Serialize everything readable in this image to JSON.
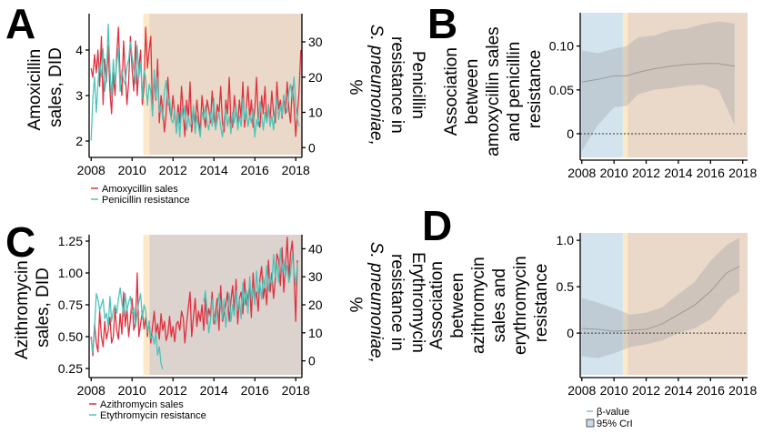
{
  "figure": {
    "panels": [
      {
        "letter": "A",
        "left_axis_lines": [
          "Amoxicillin",
          "sales, DID"
        ],
        "right_axis_lines": [
          "Penicillin",
          "resistance in",
          "S. pneumoniae,",
          "%"
        ]
      },
      {
        "letter": "B",
        "axis_lines": [
          "Association",
          "between",
          "amoxycillin sales",
          "and penicillin",
          "resistance"
        ]
      },
      {
        "letter": "C",
        "left_axis_lines": [
          "Azithromycin",
          "sales, DID"
        ],
        "right_axis_lines": [
          "Erythromycin",
          "resistance in",
          "S. pneumoniae,",
          "%"
        ]
      },
      {
        "letter": "D",
        "axis_lines": [
          "Association",
          "between",
          "azithromycin",
          "sales and",
          "erythromycin",
          "resistance"
        ]
      }
    ],
    "legend_a": [
      "Amoxycillin sales",
      "Penicillin resistance"
    ],
    "legend_c": [
      "Azithromycin sales",
      "Etythromycin resistance"
    ],
    "legend_d": [
      "β-value",
      "95% CrI"
    ]
  },
  "chart_data": [
    {
      "type": "line",
      "panel": "A",
      "x_ticks": [
        2008,
        2010,
        2012,
        2014,
        2016,
        2018
      ],
      "xlim": [
        2007.9,
        2018.3
      ],
      "ylim_left": [
        1.7,
        4.8
      ],
      "y_ticks_left": [
        2,
        3,
        4
      ],
      "ylim_right": [
        -2,
        38
      ],
      "y_ticks_right": [
        0,
        10,
        20,
        30
      ],
      "shaded_periods": [
        {
          "from": 2010.55,
          "to": 2010.85,
          "color": "#fde9c8"
        },
        {
          "from": 2010.85,
          "to": 2018.3,
          "color": "#ead9c9"
        }
      ],
      "series": [
        {
          "name": "Amoxycillin sales",
          "axis": "left",
          "color": "#e0303f",
          "x_start": 2008.0,
          "x_step": 0.0833,
          "values": [
            3.6,
            3.4,
            3.9,
            3.5,
            4.0,
            3.2,
            4.3,
            2.8,
            3.8,
            3.3,
            4.1,
            3.1,
            2.6,
            3.5,
            3.0,
            3.9,
            4.5,
            3.4,
            3.0,
            4.2,
            3.5,
            2.8,
            3.3,
            4.3,
            3.6,
            3.1,
            4.2,
            3.0,
            3.6,
            4.0,
            2.8,
            3.2,
            4.5,
            3.6,
            4.0,
            4.3,
            2.6,
            3.4,
            2.9,
            3.8,
            2.4,
            3.0,
            2.7,
            2.2,
            2.6,
            3.4,
            2.7,
            2.5,
            3.0,
            2.6,
            2.2,
            2.8,
            2.4,
            3.2,
            2.6,
            2.1,
            2.9,
            2.5,
            3.3,
            2.2,
            2.7,
            2.4,
            2.9,
            2.5,
            2.2,
            3.0,
            2.6,
            2.3,
            2.9,
            2.7,
            2.4,
            3.1,
            2.5,
            2.3,
            2.8,
            2.6,
            3.2,
            2.4,
            2.2,
            2.9,
            2.6,
            3.4,
            2.4,
            2.3,
            3.0,
            2.6,
            2.4,
            2.9,
            2.5,
            3.3,
            2.3,
            2.7,
            3.2,
            2.5,
            2.9,
            2.3,
            2.7,
            3.4,
            2.5,
            2.3,
            3.0,
            2.6,
            3.2,
            2.4,
            2.8,
            2.5,
            3.1,
            2.6,
            2.4,
            3.3,
            2.7,
            2.9,
            2.5,
            3.0,
            2.6,
            3.3,
            2.7,
            2.4,
            3.2,
            2.8,
            2.1,
            2.6,
            3.1,
            4.0
          ]
        },
        {
          "name": "Penicillin resistance",
          "axis": "right",
          "color": "#4fc3b8",
          "x_start": 2008.0,
          "x_step": 0.0833,
          "values": [
            2,
            14,
            20,
            10,
            18,
            24,
            20,
            28,
            16,
            20,
            35,
            22,
            14,
            25,
            18,
            24,
            28,
            16,
            22,
            19,
            18,
            23,
            25,
            30,
            26,
            22,
            18,
            29,
            20,
            24,
            14,
            22,
            20,
            12,
            18,
            16,
            9,
            22,
            14,
            20,
            10,
            12,
            8,
            16,
            19,
            12,
            14,
            8,
            7,
            11,
            4,
            10,
            3,
            11,
            8,
            12,
            5,
            9,
            6,
            7,
            12,
            4,
            9,
            6,
            3,
            10,
            8,
            12,
            7,
            5,
            10,
            6,
            14,
            5,
            8,
            10,
            6,
            3,
            8,
            11,
            6,
            9,
            4,
            10,
            7,
            12,
            5,
            9,
            6,
            14,
            8,
            11,
            6,
            9,
            7,
            11,
            3,
            8,
            6,
            13,
            9,
            5,
            10,
            7,
            12,
            6,
            9,
            5,
            11,
            14,
            8,
            12,
            9,
            15,
            12,
            10,
            16,
            18,
            14,
            20,
            12,
            8,
            6
          ]
        }
      ]
    },
    {
      "type": "area",
      "panel": "B",
      "x_ticks": [
        2008,
        2010,
        2012,
        2014,
        2016,
        2018
      ],
      "xlim": [
        2007.9,
        2018.3
      ],
      "y_ticks": [
        0,
        0.05,
        0.1
      ],
      "ylim": [
        -0.027,
        0.138
      ],
      "reference_line": 0,
      "shaded_periods": [
        {
          "from": 2007.9,
          "to": 2010.55,
          "color": "#d4e4ef"
        },
        {
          "from": 2010.55,
          "to": 2010.85,
          "color": "#fde9c8"
        },
        {
          "from": 2010.85,
          "to": 2018.3,
          "color": "#ead9c9"
        }
      ],
      "series": [
        {
          "name": "β-value",
          "color": "#9a9a9a",
          "x": [
            2008.0,
            2009.0,
            2010.0,
            2010.8,
            2011.5,
            2012.5,
            2013.5,
            2014.5,
            2015.5,
            2016.5,
            2017.5
          ],
          "values": [
            0.059,
            0.062,
            0.066,
            0.066,
            0.07,
            0.074,
            0.077,
            0.079,
            0.08,
            0.08,
            0.077
          ],
          "ci_lower": [
            -0.02,
            0.01,
            0.03,
            0.032,
            0.045,
            0.05,
            0.052,
            0.055,
            0.056,
            0.05,
            0.01
          ],
          "ci_upper": [
            0.095,
            0.092,
            0.097,
            0.1,
            0.11,
            0.112,
            0.118,
            0.12,
            0.125,
            0.128,
            0.126
          ]
        }
      ]
    },
    {
      "type": "line",
      "panel": "C",
      "x_ticks": [
        2008,
        2010,
        2012,
        2014,
        2016,
        2018
      ],
      "xlim": [
        2007.9,
        2018.3
      ],
      "ylim_left": [
        0.2,
        1.3
      ],
      "y_ticks_left": [
        0.25,
        0.5,
        0.75,
        1.0,
        1.25
      ],
      "ylim_right": [
        -5,
        45
      ],
      "y_ticks_right": [
        0,
        10,
        20,
        30,
        40
      ],
      "shaded_periods": [
        {
          "from": 2010.55,
          "to": 2010.85,
          "color": "#fde9c8"
        },
        {
          "from": 2010.85,
          "to": 2018.3,
          "color": "#dcd3cf"
        }
      ],
      "series": [
        {
          "name": "Azithromycin sales",
          "axis": "left",
          "color": "#e0303f",
          "x_start": 2008.0,
          "x_step": 0.0833,
          "values": [
            0.5,
            0.35,
            0.6,
            0.45,
            0.38,
            0.7,
            0.5,
            0.42,
            0.62,
            0.48,
            0.55,
            0.65,
            0.45,
            0.5,
            0.72,
            0.55,
            0.48,
            0.68,
            0.52,
            0.85,
            0.58,
            0.72,
            0.5,
            0.64,
            0.8,
            0.55,
            0.62,
            1.0,
            0.5,
            0.6,
            0.7,
            0.56,
            0.65,
            0.5,
            0.62,
            0.45,
            0.58,
            0.7,
            0.52,
            0.6,
            0.48,
            0.68,
            0.55,
            0.62,
            0.47,
            0.52,
            0.66,
            0.5,
            0.58,
            0.46,
            0.6,
            0.62,
            0.55,
            0.7,
            0.65,
            0.45,
            0.6,
            0.73,
            0.85,
            0.5,
            0.65,
            0.8,
            0.58,
            0.7,
            0.62,
            0.75,
            0.55,
            0.8,
            0.6,
            0.72,
            0.66,
            0.85,
            0.6,
            0.7,
            0.8,
            0.55,
            0.9,
            0.62,
            0.68,
            0.75,
            0.85,
            0.62,
            0.78,
            0.9,
            0.7,
            0.95,
            0.6,
            0.8,
            0.85,
            0.68,
            0.95,
            0.75,
            0.82,
            0.9,
            0.65,
            1.0,
            0.78,
            0.85,
            0.7,
            0.95,
            1.05,
            0.8,
            0.9,
            0.75,
            1.1,
            0.85,
            1.0,
            0.8,
            0.95,
            1.15,
            1.1,
            0.9,
            1.2,
            0.85,
            1.05,
            1.28,
            0.95,
            1.15,
            1.25,
            1.0,
            0.62,
            1.1
          ]
        },
        {
          "name": "Etythromycin resistance",
          "axis": "right",
          "color": "#4fc3b8",
          "x_start": 2008.0,
          "x_step": 0.0833,
          "values": [
            8,
            3,
            12,
            24,
            22,
            18,
            20,
            22,
            15,
            17,
            12,
            23,
            14,
            18,
            20,
            17,
            22,
            26,
            21,
            16,
            24,
            18,
            21,
            23,
            17,
            19,
            12,
            17,
            21,
            24,
            15,
            20,
            18,
            10,
            14,
            8,
            9,
            6,
            10,
            2,
            5,
            -1,
            -3,
            null,
            null,
            null,
            null,
            null,
            null,
            null,
            null,
            null,
            null,
            null,
            null,
            null,
            null,
            null,
            null,
            null,
            null,
            null,
            null,
            null,
            null,
            null,
            21,
            25,
            18,
            10,
            14,
            22,
            16,
            13,
            18,
            24,
            20,
            15,
            22,
            12,
            18,
            24,
            14,
            20,
            16,
            25,
            18,
            22,
            15,
            28,
            20,
            25,
            17,
            30,
            22,
            26,
            20,
            32,
            24,
            28,
            22,
            30,
            26,
            34,
            25,
            30,
            27,
            38,
            30,
            35,
            28,
            40,
            32,
            36,
            30,
            34,
            28,
            31,
            38,
            32,
            27,
            35
          ]
        }
      ]
    },
    {
      "type": "area",
      "panel": "D",
      "x_ticks": [
        2008,
        2010,
        2012,
        2014,
        2016,
        2018
      ],
      "xlim": [
        2007.9,
        2018.3
      ],
      "y_ticks": [
        0,
        0.5,
        1.0
      ],
      "ylim": [
        -0.45,
        1.08
      ],
      "reference_line": 0,
      "shaded_periods": [
        {
          "from": 2007.9,
          "to": 2010.55,
          "color": "#d4e4ef"
        },
        {
          "from": 2010.55,
          "to": 2010.85,
          "color": "#fde9c8"
        },
        {
          "from": 2010.85,
          "to": 2018.3,
          "color": "#ead9c9"
        }
      ],
      "series": [
        {
          "name": "β-value",
          "color": "#9a9a9a",
          "x": [
            2008.0,
            2009.0,
            2010.0,
            2011.0,
            2012.0,
            2013.0,
            2014.0,
            2015.0,
            2016.0,
            2017.0,
            2017.8
          ],
          "values": [
            0.05,
            0.04,
            0.02,
            0.03,
            0.04,
            0.1,
            0.2,
            0.3,
            0.45,
            0.65,
            0.72
          ],
          "ci_lower": [
            -0.25,
            -0.27,
            -0.22,
            -0.15,
            -0.12,
            -0.08,
            0.0,
            0.05,
            0.15,
            0.35,
            0.45
          ],
          "ci_upper": [
            0.38,
            0.33,
            0.27,
            0.2,
            0.22,
            0.28,
            0.42,
            0.55,
            0.78,
            0.95,
            1.03
          ]
        }
      ]
    }
  ]
}
